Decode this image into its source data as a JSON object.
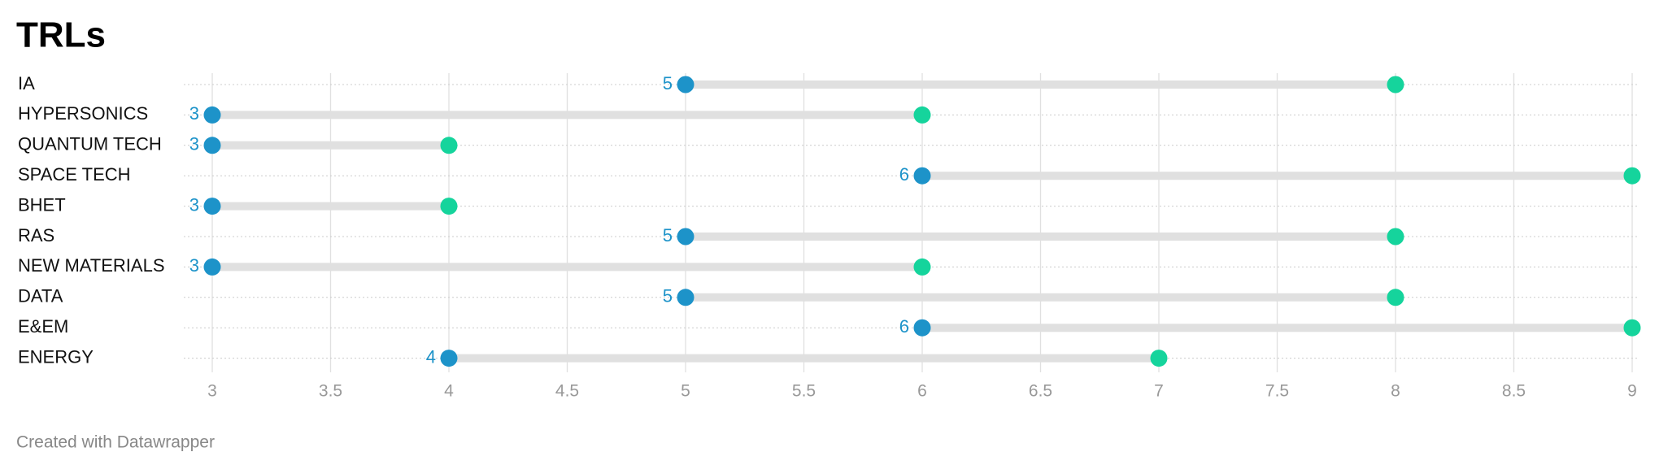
{
  "chart_data": {
    "type": "range",
    "title": "TRLs",
    "categories": [
      "IA",
      "HYPERSONICS",
      "QUANTUM TECH",
      "SPACE TECH",
      "BHET",
      "RAS",
      "NEW MATERIALS",
      "DATA",
      "E&EM",
      "ENERGY"
    ],
    "series": [
      {
        "color": "#1d93c9",
        "values": [
          5,
          3,
          3,
          6,
          3,
          5,
          3,
          5,
          6,
          4
        ]
      },
      {
        "color": "#15d49c",
        "values": [
          8,
          6,
          4,
          9,
          4,
          8,
          6,
          8,
          9,
          7
        ]
      }
    ],
    "xlim": [
      3,
      9
    ],
    "xticks": [
      3,
      3.5,
      4,
      4.5,
      5,
      5.5,
      6,
      6.5,
      7,
      7.5,
      8,
      8.5,
      9
    ],
    "grid": true,
    "footer": "Created with Datawrapper"
  }
}
